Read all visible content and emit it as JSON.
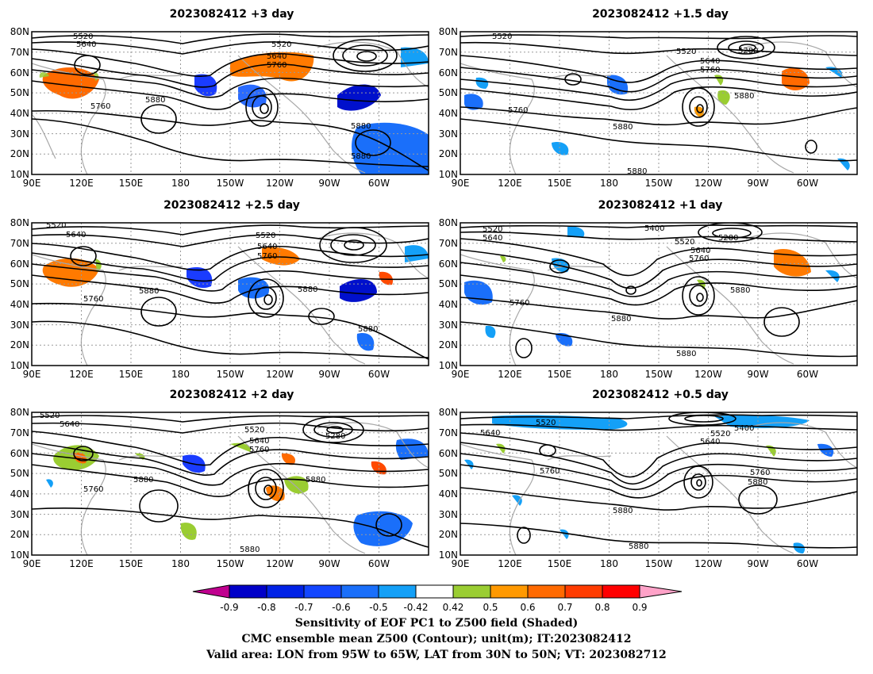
{
  "panels": [
    {
      "title": "2023082412 +3 day",
      "labels": [
        "5520",
        "5640",
        "5520",
        "5640",
        "5760",
        "5760",
        "5880",
        "5880",
        "5880"
      ]
    },
    {
      "title": "2023082412 +1.5 day",
      "labels": [
        "5520",
        "5280",
        "5520",
        "5640",
        "5760",
        "5760",
        "5880",
        "5880",
        "5880"
      ]
    },
    {
      "title": "2023082412 +2.5 day",
      "labels": [
        "5520",
        "5640",
        "5520",
        "5640",
        "5760",
        "5760",
        "5880",
        "5880",
        "5880"
      ]
    },
    {
      "title": "2023082412 +1 day",
      "labels": [
        "5520",
        "5640",
        "5400",
        "5280",
        "5520",
        "5640",
        "5760",
        "5760",
        "5880",
        "5880",
        "5880"
      ]
    },
    {
      "title": "2023082412 +2 day",
      "labels": [
        "5520",
        "5640",
        "5520",
        "5640",
        "5760",
        "5280",
        "5760",
        "5880",
        "5880",
        "5880"
      ]
    },
    {
      "title": "2023082412 +0.5 day",
      "labels": [
        "5520",
        "5640",
        "5520",
        "5400",
        "5640",
        "5760",
        "5760",
        "5880",
        "5880",
        "5880"
      ]
    }
  ],
  "axes": {
    "lat_ticks": [
      "80N",
      "70N",
      "60N",
      "50N",
      "40N",
      "30N",
      "20N",
      "10N"
    ],
    "lon_ticks": [
      "90E",
      "120E",
      "150E",
      "180",
      "150W",
      "120W",
      "90W",
      "60W"
    ]
  },
  "colorbar": {
    "colors": [
      "#c0008f",
      "#0000c8",
      "#0022e6",
      "#1346ff",
      "#1a6ffa",
      "#14a0f7",
      "#00c8ff",
      "#ffffff",
      "#9acd32",
      "#ff9900",
      "#ff6a00",
      "#ff3c00",
      "#ff0000",
      "#ffa2c8"
    ],
    "ticks": [
      "-0.9",
      "-0.8",
      "-0.7",
      "-0.6",
      "-0.5",
      "-0.42",
      "0.42",
      "0.5",
      "0.6",
      "0.7",
      "0.8",
      "0.9"
    ]
  },
  "footer": [
    "Sensitivity of EOF PC1 to Z500 field (Shaded)",
    "CMC ensemble mean Z500 (Contour); unit(m); IT:2023082412",
    "Valid area: LON from 95W to 65W, LAT from 30N to 50N; VT: 2023082712"
  ]
}
